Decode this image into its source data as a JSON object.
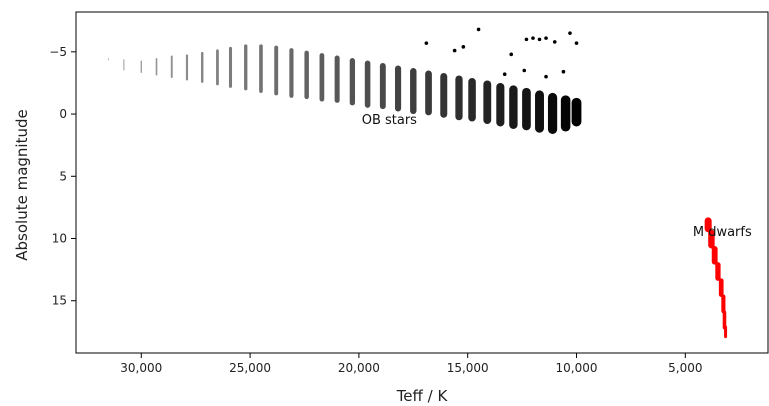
{
  "chart_data": {
    "type": "scatter",
    "title": "",
    "xlabel": "Teff / K",
    "ylabel": "Absolute magnitude",
    "xlim": [
      33000,
      1200
    ],
    "ylim": [
      19.2,
      -8.2
    ],
    "x_inverted": true,
    "y_inverted": true,
    "xticks": [
      30000,
      25000,
      20000,
      15000,
      10000,
      5000
    ],
    "xtick_labels": [
      "30,000",
      "25,000",
      "20,000",
      "15,000",
      "10,000",
      "5,000"
    ],
    "yticks": [
      -5,
      0,
      5,
      10,
      15
    ],
    "ytick_labels": [
      "−5",
      "0",
      "5",
      "10",
      "15"
    ],
    "grid": false,
    "series": [
      {
        "color": "#000000",
        "columns": [
          {
            "teff": 31500,
            "mag_min": -4.5,
            "mag_max": -4.3
          },
          {
            "teff": 30800,
            "mag_min": -4.4,
            "mag_max": -3.5
          },
          {
            "teff": 30000,
            "mag_min": -4.3,
            "mag_max": -3.3
          },
          {
            "teff": 29300,
            "mag_min": -4.5,
            "mag_max": -3.1
          },
          {
            "teff": 28600,
            "mag_min": -4.7,
            "mag_max": -2.9
          },
          {
            "teff": 27900,
            "mag_min": -4.8,
            "mag_max": -2.7
          },
          {
            "teff": 27200,
            "mag_min": -5.0,
            "mag_max": -2.5
          },
          {
            "teff": 26500,
            "mag_min": -5.2,
            "mag_max": -2.3
          },
          {
            "teff": 25900,
            "mag_min": -5.4,
            "mag_max": -2.1
          },
          {
            "teff": 25200,
            "mag_min": -5.6,
            "mag_max": -1.9
          },
          {
            "teff": 24500,
            "mag_min": -5.6,
            "mag_max": -1.7
          },
          {
            "teff": 23800,
            "mag_min": -5.5,
            "mag_max": -1.5
          },
          {
            "teff": 23100,
            "mag_min": -5.3,
            "mag_max": -1.3
          },
          {
            "teff": 22400,
            "mag_min": -5.1,
            "mag_max": -1.2
          },
          {
            "teff": 21700,
            "mag_min": -4.9,
            "mag_max": -1.0
          },
          {
            "teff": 21000,
            "mag_min": -4.7,
            "mag_max": -0.9
          },
          {
            "teff": 20300,
            "mag_min": -4.5,
            "mag_max": -0.7
          },
          {
            "teff": 19600,
            "mag_min": -4.3,
            "mag_max": -0.5
          },
          {
            "teff": 18900,
            "mag_min": -4.1,
            "mag_max": -0.4
          },
          {
            "teff": 18200,
            "mag_min": -3.9,
            "mag_max": -0.2
          },
          {
            "teff": 17500,
            "mag_min": -3.7,
            "mag_max": 0.0
          },
          {
            "teff": 16800,
            "mag_min": -3.5,
            "mag_max": 0.1
          },
          {
            "teff": 16100,
            "mag_min": -3.3,
            "mag_max": 0.3
          },
          {
            "teff": 15400,
            "mag_min": -3.1,
            "mag_max": 0.5
          },
          {
            "teff": 14800,
            "mag_min": -2.9,
            "mag_max": 0.6
          },
          {
            "teff": 14100,
            "mag_min": -2.7,
            "mag_max": 0.8
          },
          {
            "teff": 13500,
            "mag_min": -2.5,
            "mag_max": 1.0
          },
          {
            "teff": 12900,
            "mag_min": -2.3,
            "mag_max": 1.2
          },
          {
            "teff": 12300,
            "mag_min": -2.1,
            "mag_max": 1.3
          },
          {
            "teff": 11700,
            "mag_min": -1.9,
            "mag_max": 1.5
          },
          {
            "teff": 11100,
            "mag_min": -1.7,
            "mag_max": 1.6
          },
          {
            "teff": 10500,
            "mag_min": -1.5,
            "mag_max": 1.4
          },
          {
            "teff": 10000,
            "mag_min": -1.3,
            "mag_max": 1.0
          }
        ],
        "points": [
          {
            "teff": 16900,
            "mag": -5.7
          },
          {
            "teff": 15600,
            "mag": -5.1
          },
          {
            "teff": 15200,
            "mag": -5.4
          },
          {
            "teff": 14500,
            "mag": -6.8
          },
          {
            "teff": 13000,
            "mag": -4.8
          },
          {
            "teff": 12300,
            "mag": -6.0
          },
          {
            "teff": 12000,
            "mag": -6.1
          },
          {
            "teff": 11700,
            "mag": -6.0
          },
          {
            "teff": 11400,
            "mag": -6.1
          },
          {
            "teff": 11000,
            "mag": -5.8
          },
          {
            "teff": 10300,
            "mag": -6.5
          },
          {
            "teff": 10000,
            "mag": -5.7
          },
          {
            "teff": 13300,
            "mag": -3.2
          },
          {
            "teff": 12400,
            "mag": -3.5
          },
          {
            "teff": 11400,
            "mag": -3.0
          },
          {
            "teff": 10600,
            "mag": -3.4
          }
        ]
      },
      {
        "color": "#ff0000",
        "columns": [
          {
            "teff": 3950,
            "mag_min": 8.3,
            "mag_max": 9.5
          },
          {
            "teff": 3800,
            "mag_min": 9.3,
            "mag_max": 10.8
          },
          {
            "teff": 3650,
            "mag_min": 10.6,
            "mag_max": 12.1
          },
          {
            "teff": 3500,
            "mag_min": 11.9,
            "mag_max": 13.4
          },
          {
            "teff": 3350,
            "mag_min": 13.2,
            "mag_max": 14.7
          },
          {
            "teff": 3250,
            "mag_min": 14.5,
            "mag_max": 16.0
          },
          {
            "teff": 3200,
            "mag_min": 15.8,
            "mag_max": 17.3
          },
          {
            "teff": 3150,
            "mag_min": 17.0,
            "mag_max": 18.0
          }
        ],
        "points": []
      }
    ],
    "annotations": [
      {
        "text": "OB stars",
        "teff": 18600,
        "mag": 0.8
      },
      {
        "text": "M dwarfs",
        "teff": 3300,
        "mag": 9.8
      }
    ]
  }
}
